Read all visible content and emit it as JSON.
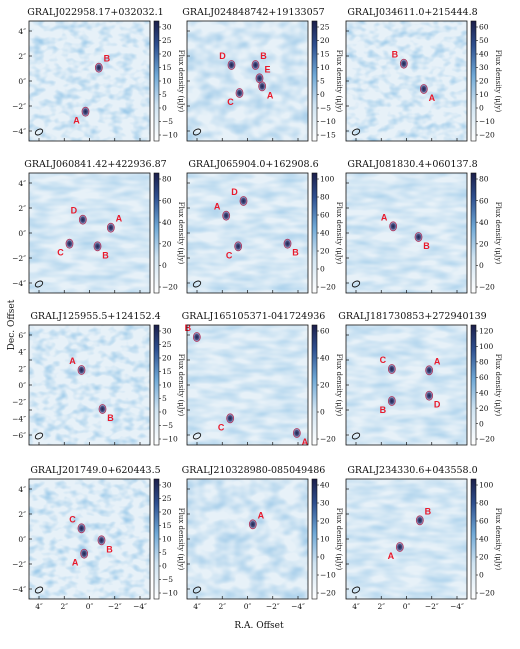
{
  "figure": {
    "xlabel": "R.A. Offset",
    "ylabel": "Dec. Offset",
    "colorbar_label": "Flux density (μJy)"
  },
  "colors": {
    "source_label": "#e8192c",
    "cmap_low": "#ffffff",
    "cmap_mid": "#6fa8d6",
    "cmap_high": "#1c1f4a",
    "contour": "#b0325a"
  },
  "chart_data": [
    {
      "type": "heatmap",
      "title": "GRALJ022958.17+032032.1",
      "xticks": [],
      "yticks": [
        "4″",
        "2″",
        "0″",
        "−2″",
        "−4″"
      ],
      "colorbar_ticks": [
        "30",
        "25",
        "20",
        "15",
        "10",
        "5",
        "0",
        "−5",
        "−10"
      ],
      "sources": [
        {
          "label": "B",
          "x": -0.7,
          "y": 1.0
        },
        {
          "label": "A",
          "x": 0.3,
          "y": -2.3
        }
      ],
      "beam": true
    },
    {
      "type": "heatmap",
      "title": "GRALJ024848742+19133057",
      "xticks": [],
      "yticks": [],
      "colorbar_ticks": [
        "25",
        "20",
        "15",
        "10",
        "5",
        "0",
        "−5",
        "−10",
        "−15"
      ],
      "sources": [
        {
          "label": "D",
          "x": 1.2,
          "y": 1.2
        },
        {
          "label": "B",
          "x": -0.6,
          "y": 1.2
        },
        {
          "label": "E",
          "x": -0.9,
          "y": 0.2
        },
        {
          "label": "A",
          "x": -1.1,
          "y": -0.4
        },
        {
          "label": "C",
          "x": 0.6,
          "y": -0.9
        }
      ],
      "beam": true
    },
    {
      "type": "heatmap",
      "title": "GRALJ034611.0+215444.8",
      "xticks": [],
      "yticks": [],
      "colorbar_ticks": [
        "60",
        "50",
        "40",
        "30",
        "20",
        "10",
        "0",
        "−10",
        "−20"
      ],
      "sources": [
        {
          "label": "B",
          "x": 0.2,
          "y": 1.3
        },
        {
          "label": "A",
          "x": -1.3,
          "y": -0.6
        }
      ],
      "beam": true
    },
    {
      "type": "heatmap",
      "title": "GRALJ060841.42+422936.87",
      "xticks": [],
      "yticks": [
        "4″",
        "2″",
        "0″",
        "−2″",
        "−4″"
      ],
      "colorbar_ticks": [
        "80",
        "60",
        "40",
        "20",
        "0",
        "−20"
      ],
      "sources": [
        {
          "label": "D",
          "x": 0.5,
          "y": 1.0
        },
        {
          "label": "A",
          "x": -1.6,
          "y": 0.4
        },
        {
          "label": "C",
          "x": 1.5,
          "y": -0.8
        },
        {
          "label": "B",
          "x": -0.6,
          "y": -1.0
        }
      ],
      "beam": true
    },
    {
      "type": "heatmap",
      "title": "GRALJ065904.0+162908.6",
      "xticks": [],
      "yticks": [],
      "colorbar_ticks": [
        "100",
        "80",
        "60",
        "40",
        "20",
        "0",
        "−20"
      ],
      "sources": [
        {
          "label": "D",
          "x": 0.3,
          "y": 2.4
        },
        {
          "label": "A",
          "x": 1.6,
          "y": 1.3
        },
        {
          "label": "C",
          "x": 0.7,
          "y": -1.0
        },
        {
          "label": "B",
          "x": -3.0,
          "y": -0.8
        }
      ],
      "beam": true
    },
    {
      "type": "heatmap",
      "title": "GRALJ081830.4+060137.8",
      "xticks": [],
      "yticks": [],
      "colorbar_ticks": [
        "80",
        "60",
        "40",
        "20",
        "0",
        "−20"
      ],
      "sources": [
        {
          "label": "A",
          "x": 1.0,
          "y": 0.5
        },
        {
          "label": "B",
          "x": -0.9,
          "y": -0.3
        }
      ],
      "beam": true
    },
    {
      "type": "heatmap",
      "title": "GRALJ125955.5+124152.4",
      "xticks": [],
      "yticks": [
        "6″",
        "4″",
        "2″",
        "0″",
        "−2″",
        "−4″",
        "−6″"
      ],
      "colorbar_ticks": [
        "30",
        "25",
        "20",
        "15",
        "10",
        "5",
        "0",
        "−5",
        "−10"
      ],
      "sources": [
        {
          "label": "A",
          "x": 0.8,
          "y": 1.5
        },
        {
          "label": "B",
          "x": -1.3,
          "y": -2.4
        }
      ],
      "beam": true
    },
    {
      "type": "heatmap",
      "title": "GRALJ165105371-041724936",
      "xticks": [],
      "yticks": [],
      "colorbar_ticks": [
        "60",
        "40",
        "20",
        "0",
        "−20"
      ],
      "sources": [
        {
          "label": "B",
          "x": 3.8,
          "y": 3.6
        },
        {
          "label": "C",
          "x": 1.3,
          "y": -2.5
        },
        {
          "label": "A",
          "x": -3.7,
          "y": -3.6
        }
      ],
      "beam": true
    },
    {
      "type": "heatmap",
      "title": "GRALJ181730853+272940139",
      "xticks": [],
      "yticks": [],
      "colorbar_ticks": [
        "120",
        "100",
        "80",
        "60",
        "40",
        "20",
        "0",
        "−20"
      ],
      "sources": [
        {
          "label": "C",
          "x": 1.1,
          "y": 1.2
        },
        {
          "label": "A",
          "x": -1.7,
          "y": 1.1
        },
        {
          "label": "D",
          "x": -1.7,
          "y": -0.8
        },
        {
          "label": "B",
          "x": 1.1,
          "y": -1.2
        }
      ],
      "beam": true
    },
    {
      "type": "heatmap",
      "title": "GRALJ201749.0+620443.5",
      "xticks": [
        "4″",
        "2″",
        "0″",
        "−2″",
        "−4″"
      ],
      "yticks": [
        "4″",
        "2″",
        "0″",
        "−2″",
        "−4″"
      ],
      "colorbar_ticks": [
        "30",
        "25",
        "20",
        "15",
        "10",
        "5",
        "0",
        "−5",
        "−10"
      ],
      "sources": [
        {
          "label": "C",
          "x": 0.6,
          "y": 0.8
        },
        {
          "label": "B",
          "x": -0.9,
          "y": -0.1
        },
        {
          "label": "A",
          "x": 0.4,
          "y": -1.1
        }
      ],
      "beam": true
    },
    {
      "type": "heatmap",
      "title": "GRALJ210328980-085049486",
      "xticks": [
        "4″",
        "2″",
        "0″",
        "−2″",
        "−4″"
      ],
      "yticks": [],
      "colorbar_ticks": [
        "40",
        "30",
        "20",
        "10",
        "0",
        "−10",
        "−20"
      ],
      "sources": [
        {
          "label": "A",
          "x": -0.4,
          "y": 1.1
        }
      ],
      "beam": true
    },
    {
      "type": "heatmap",
      "title": "GRALJ234330.6+043558.0",
      "xticks": [
        "4″",
        "2″",
        "0″",
        "−2″",
        "−4″"
      ],
      "yticks": [],
      "colorbar_ticks": [
        "100",
        "80",
        "60",
        "40",
        "20",
        "0",
        "−20"
      ],
      "sources": [
        {
          "label": "B",
          "x": -1.0,
          "y": 1.4
        },
        {
          "label": "A",
          "x": 0.5,
          "y": -0.6
        }
      ],
      "beam": true
    }
  ]
}
